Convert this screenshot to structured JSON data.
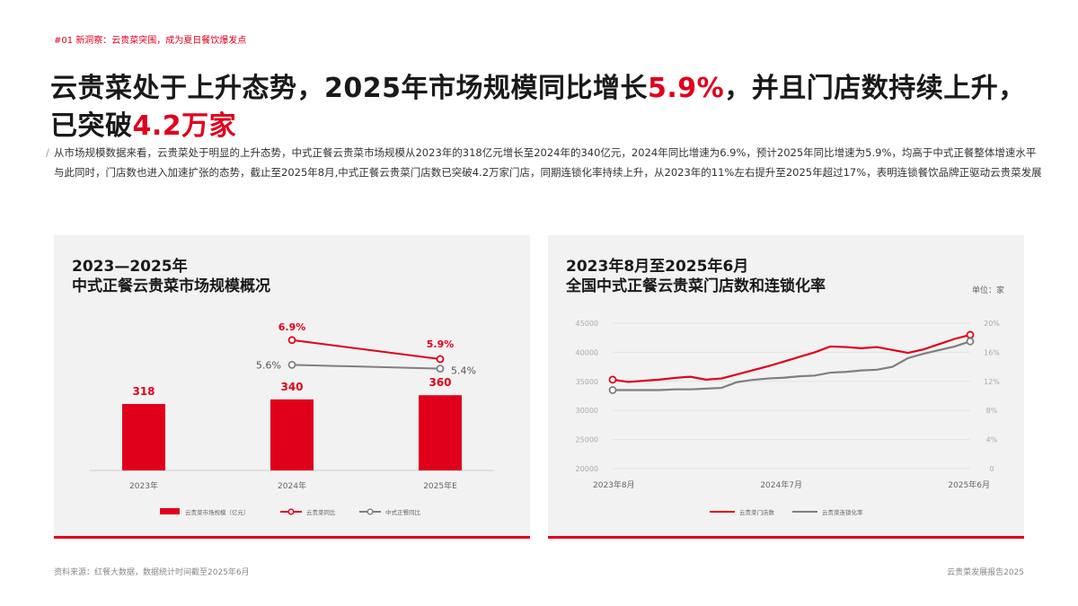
{
  "tag": "#01 新洞察：云贵菜突围，成为夏日餐饮爆发点",
  "headline": {
    "p1": "云贵菜处于上升态势，2025年市场规模同比增长",
    "hl1": "5.9%",
    "p2": "，并且门店数持续上升，已突破",
    "hl2": "4.2万家"
  },
  "desc": {
    "para1": "从市场规模数据来看，云贵菜处于明显的上升态势，中式正餐云贵菜市场规模从2023年的318亿元增长至2024年的340亿元，2024年同比增速为6.9%，预计2025年同比增速为5.9%，均高于中式正餐整体增速水平",
    "para2": "与此同时，门店数也进入加速扩张的态势，截止至2025年8月,中式正餐云贵菜门店数已突破4.2万家门店，同期连锁化率持续上升，从2023年的11%左右提升至2025年超过17%，表明连锁餐饮品牌正驱动云贵菜发展"
  },
  "left_panel": {
    "title_line1": "2023—2025年",
    "title_line2": "中式正餐云贵菜市场规模概况"
  },
  "right_panel": {
    "title_line1": "2023年8月至2025年6月",
    "title_line2": "全国中式正餐云贵菜门店数和连锁化率",
    "unit": "单位：家"
  },
  "footer": {
    "source": "资料来源：红餐大数据，数据统计时间截至2025年6月",
    "report": "云贵菜发展报告2025"
  },
  "colors": {
    "red": "#e0001b",
    "gray": "#7f7f7f",
    "panel": "#f2f2f2"
  },
  "chart_data": [
    {
      "type": "bar",
      "categories": [
        "2023年",
        "2024年",
        "2025年E"
      ],
      "series": [
        {
          "name": "云贵菜市场规模（亿元）",
          "kind": "bar",
          "color": "#e0001b",
          "values": [
            318,
            340,
            360
          ]
        },
        {
          "name": "云贵菜同比",
          "kind": "line",
          "color": "#e0001b",
          "values": [
            null,
            6.9,
            5.9
          ],
          "labels": [
            "",
            "6.9%",
            "5.9%"
          ]
        },
        {
          "name": "中式正餐同比",
          "kind": "line",
          "color": "#7f7f7f",
          "values": [
            null,
            5.6,
            5.4
          ],
          "labels": [
            "",
            "5.6%",
            "5.4%"
          ]
        }
      ],
      "legend": "bottom"
    },
    {
      "type": "line",
      "x_ticks": [
        "2023年8月",
        "2024年7月",
        "2025年6月"
      ],
      "y_left": {
        "ylim": [
          20000,
          45000
        ],
        "ticks": [
          "20000",
          "25000",
          "30000",
          "35000",
          "40000",
          "45000"
        ]
      },
      "y_right": {
        "ylim": [
          0,
          20
        ],
        "ticks": [
          "0",
          "4%",
          "8%",
          "12%",
          "16%",
          "20%"
        ]
      },
      "series": [
        {
          "name": "云贵菜门店数",
          "axis": "left",
          "color": "#e0001b",
          "values": [
            35300,
            34900,
            35100,
            35300,
            35600,
            35800,
            35300,
            35500,
            36200,
            36900,
            37600,
            38400,
            39200,
            40000,
            41000,
            40900,
            40700,
            40900,
            40400,
            39900,
            40500,
            41400,
            42300,
            43000
          ]
        },
        {
          "name": "云贵菜连锁化率",
          "axis": "right",
          "color": "#7f7f7f",
          "values": [
            10.8,
            10.8,
            10.8,
            10.8,
            10.9,
            10.9,
            11.0,
            11.1,
            11.9,
            12.2,
            12.4,
            12.5,
            12.7,
            12.8,
            13.2,
            13.3,
            13.5,
            13.6,
            14.0,
            15.2,
            15.8,
            16.3,
            16.8,
            17.5
          ]
        }
      ],
      "legend": "bottom"
    }
  ]
}
